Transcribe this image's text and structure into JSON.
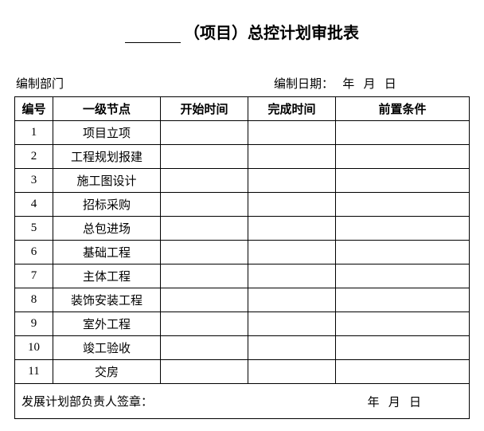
{
  "title": {
    "suffix": "（项目）总控计划审批表"
  },
  "meta": {
    "dept_label": "编制部门",
    "date_label": "编制日期：",
    "year": "年",
    "month": "月",
    "day": "日"
  },
  "table": {
    "headers": {
      "num": "编号",
      "node": "一级节点",
      "start": "开始时间",
      "end": "完成时间",
      "pre": "前置条件"
    },
    "rows": [
      {
        "num": "1",
        "node": "项目立项",
        "start": "",
        "end": "",
        "pre": ""
      },
      {
        "num": "2",
        "node": "工程规划报建",
        "start": "",
        "end": "",
        "pre": ""
      },
      {
        "num": "3",
        "node": "施工图设计",
        "start": "",
        "end": "",
        "pre": ""
      },
      {
        "num": "4",
        "node": "招标采购",
        "start": "",
        "end": "",
        "pre": ""
      },
      {
        "num": "5",
        "node": "总包进场",
        "start": "",
        "end": "",
        "pre": ""
      },
      {
        "num": "6",
        "node": "基础工程",
        "start": "",
        "end": "",
        "pre": ""
      },
      {
        "num": "7",
        "node": "主体工程",
        "start": "",
        "end": "",
        "pre": ""
      },
      {
        "num": "8",
        "node": "装饰安装工程",
        "start": "",
        "end": "",
        "pre": ""
      },
      {
        "num": "9",
        "node": "室外工程",
        "start": "",
        "end": "",
        "pre": ""
      },
      {
        "num": "10",
        "node": "竣工验收",
        "start": "",
        "end": "",
        "pre": ""
      },
      {
        "num": "11",
        "node": "交房",
        "start": "",
        "end": "",
        "pre": ""
      }
    ],
    "footer": {
      "label": "发展计划部负责人签章：",
      "year": "年",
      "month": "月",
      "day": "日"
    }
  }
}
